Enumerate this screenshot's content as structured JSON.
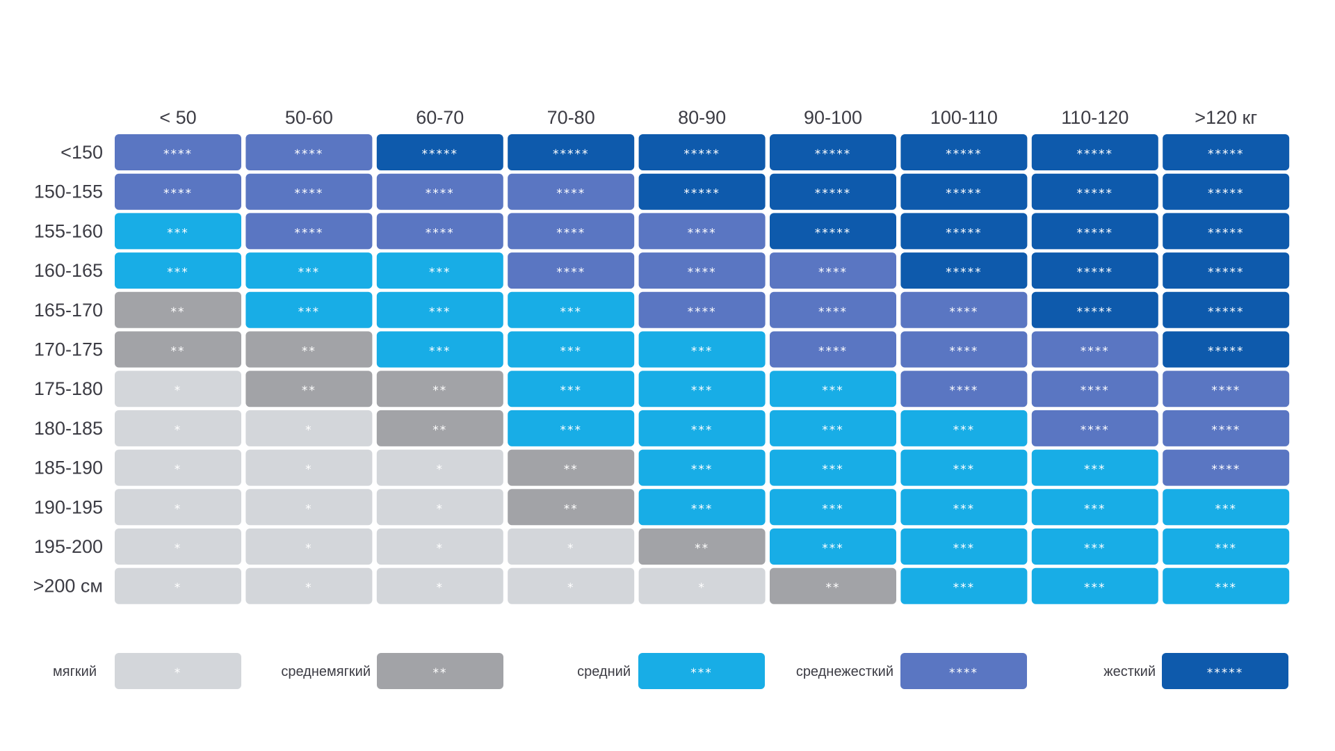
{
  "chart_data": {
    "type": "heatmap",
    "title": "",
    "xlabel": "",
    "ylabel": "",
    "columns": [
      "< 50",
      "50-60",
      "60-70",
      "70-80",
      "80-90",
      "90-100",
      "100-110",
      "110-120",
      ">120 кг"
    ],
    "rows": [
      "<150",
      "150-155",
      "155-160",
      "160-165",
      "165-170",
      "170-175",
      "175-180",
      "180-185",
      "185-190",
      "190-195",
      "195-200",
      ">200 см"
    ],
    "values": [
      [
        4,
        4,
        5,
        5,
        5,
        5,
        5,
        5,
        5
      ],
      [
        4,
        4,
        4,
        4,
        5,
        5,
        5,
        5,
        5
      ],
      [
        3,
        4,
        4,
        4,
        4,
        5,
        5,
        5,
        5
      ],
      [
        3,
        3,
        3,
        4,
        4,
        4,
        5,
        5,
        5
      ],
      [
        2,
        3,
        3,
        3,
        4,
        4,
        4,
        5,
        5
      ],
      [
        2,
        2,
        3,
        3,
        3,
        4,
        4,
        4,
        5
      ],
      [
        1,
        2,
        2,
        3,
        3,
        3,
        4,
        4,
        4
      ],
      [
        1,
        1,
        2,
        3,
        3,
        3,
        3,
        4,
        4
      ],
      [
        1,
        1,
        1,
        2,
        3,
        3,
        3,
        3,
        4
      ],
      [
        1,
        1,
        1,
        2,
        3,
        3,
        3,
        3,
        3
      ],
      [
        1,
        1,
        1,
        1,
        2,
        3,
        3,
        3,
        3
      ],
      [
        1,
        1,
        1,
        1,
        1,
        2,
        3,
        3,
        3
      ]
    ],
    "levels": [
      {
        "value": 1,
        "label": "мягкий",
        "stars": "*",
        "color": "#d3d6da"
      },
      {
        "value": 2,
        "label": "среднемягкий",
        "stars": "**",
        "color": "#a2a3a7"
      },
      {
        "value": 3,
        "label": "средний",
        "stars": "***",
        "color": "#18ade6"
      },
      {
        "value": 4,
        "label": "среднежесткий",
        "stars": "****",
        "color": "#5a76c2"
      },
      {
        "value": 5,
        "label": "жесткий",
        "stars": "*****",
        "color": "#0e5aac"
      }
    ],
    "legend_position": "bottom"
  }
}
